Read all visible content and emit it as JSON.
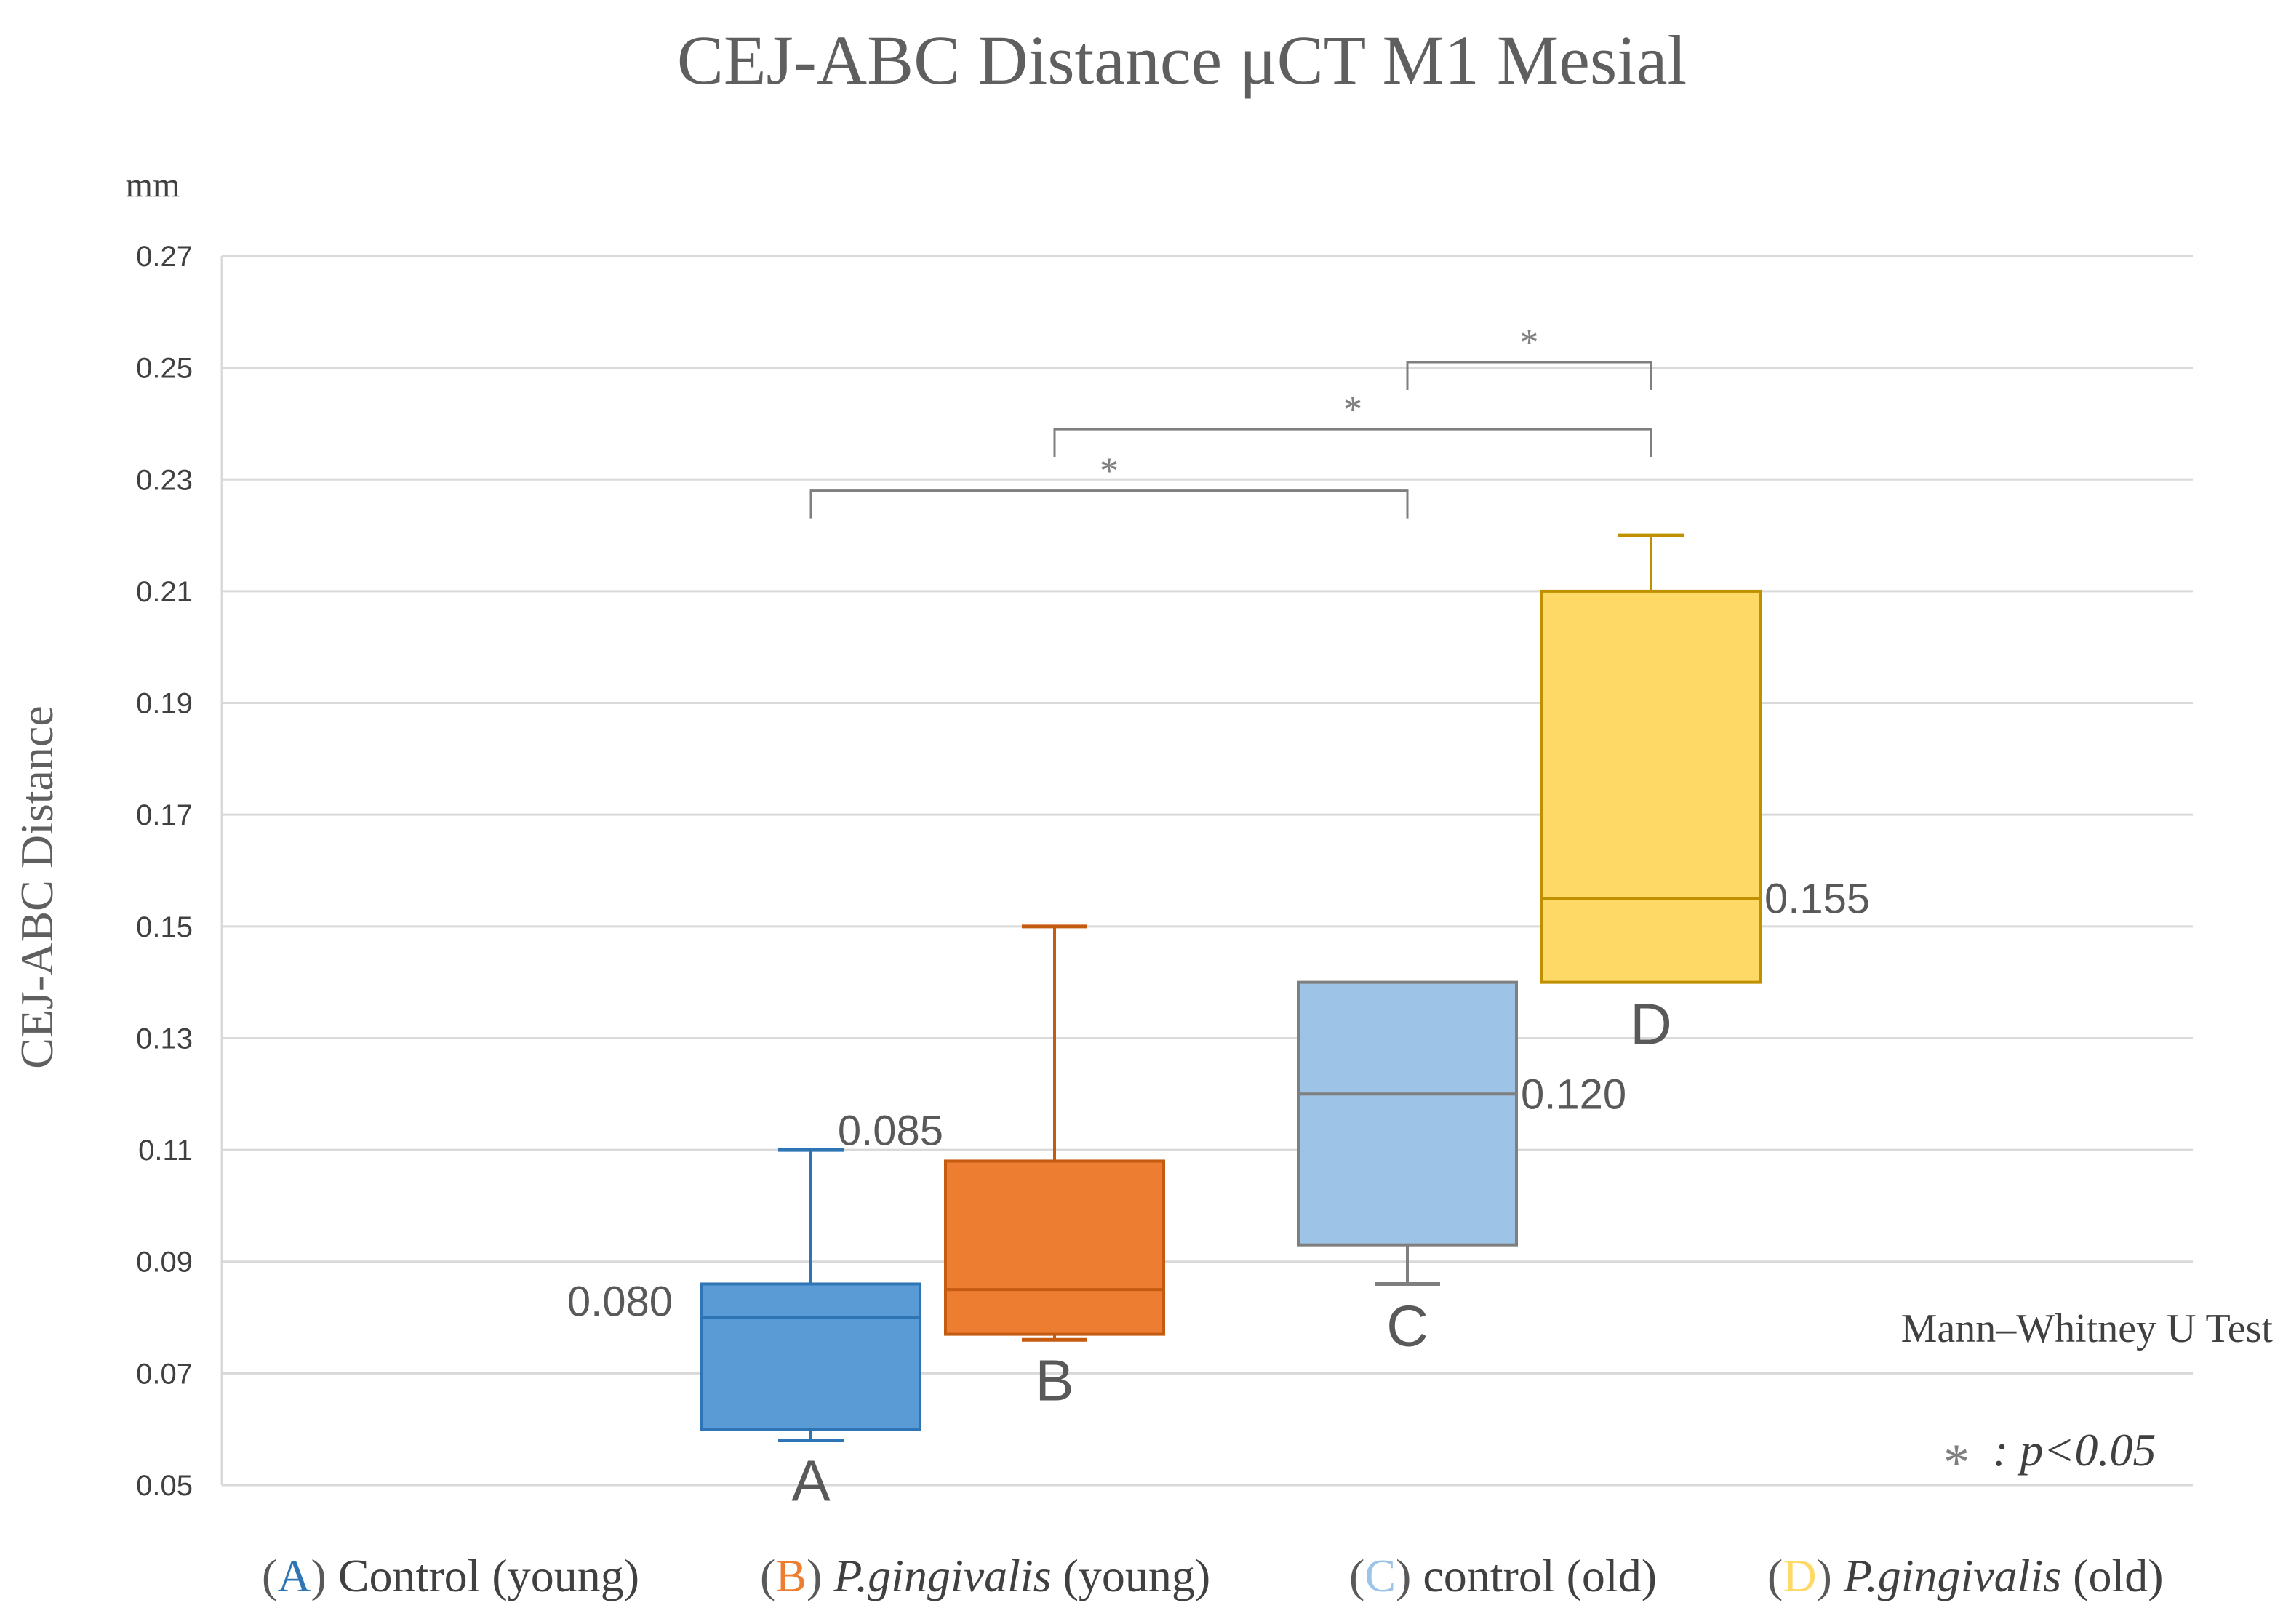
{
  "chart_data": {
    "type": "box",
    "title": "CEJ-ABC Distance μCT M1 Mesial",
    "ylabel": "CEJ-ABC Distance",
    "yunit": "mm",
    "ylim": [
      0.05,
      0.27
    ],
    "yticks": [
      "0.27",
      "0.25",
      "0.23",
      "0.21",
      "0.19",
      "0.17",
      "0.15",
      "0.13",
      "0.11",
      "0.09",
      "0.07",
      "0.05"
    ],
    "grid": true,
    "groups": [
      {
        "label": "A",
        "min": 0.058,
        "q1": 0.06,
        "median": 0.08,
        "q3": 0.086,
        "max": 0.11,
        "median_label": "0.080",
        "fill": "#5b9bd5",
        "stroke": "#2e75b6"
      },
      {
        "label": "B",
        "min": 0.076,
        "q1": 0.077,
        "median": 0.085,
        "q3": 0.108,
        "max": 0.15,
        "median_label": "0.085",
        "fill": "#ed7d31",
        "stroke": "#c55a11"
      },
      {
        "label": "C",
        "min": 0.086,
        "q1": 0.093,
        "median": 0.12,
        "q3": 0.14,
        "max": 0.14,
        "median_label": "0.120",
        "fill": "#9dc3e6",
        "stroke": "#7f7f7f"
      },
      {
        "label": "D",
        "min": 0.14,
        "q1": 0.14,
        "median": 0.155,
        "q3": 0.21,
        "max": 0.22,
        "median_label": "0.155",
        "fill": "#ffd966",
        "stroke": "#bf9000"
      }
    ],
    "significance": [
      {
        "from": "A",
        "to": "C",
        "y": 0.228,
        "label": "*"
      },
      {
        "from": "B",
        "to": "D",
        "y": 0.239,
        "label": "*"
      },
      {
        "from": "C",
        "to": "D",
        "y": 0.251,
        "label": "*"
      }
    ],
    "test_name": "Mann–Whitney U Test",
    "p_note_star": "*",
    "p_note_text": ": p<0.05",
    "legend": [
      {
        "letter": "A",
        "open": "(",
        "close": ")",
        "text": " Control (young)",
        "italic_part": "",
        "rest": "",
        "color": "#2e75b6"
      },
      {
        "letter": "B",
        "open": "(",
        "close": ")",
        "text": " ",
        "italic_part": "P.gingivalis",
        "rest": " (young)",
        "color": "#ed7d31"
      },
      {
        "letter": "C",
        "open": "(",
        "close": ")",
        "text": " control (old)",
        "italic_part": "",
        "rest": "",
        "color": "#9dc3e6"
      },
      {
        "letter": "D",
        "open": "(",
        "close": ")",
        "text": " ",
        "italic_part": "P.gingivalis",
        "rest": " (old)",
        "color": "#ffd966"
      }
    ]
  }
}
